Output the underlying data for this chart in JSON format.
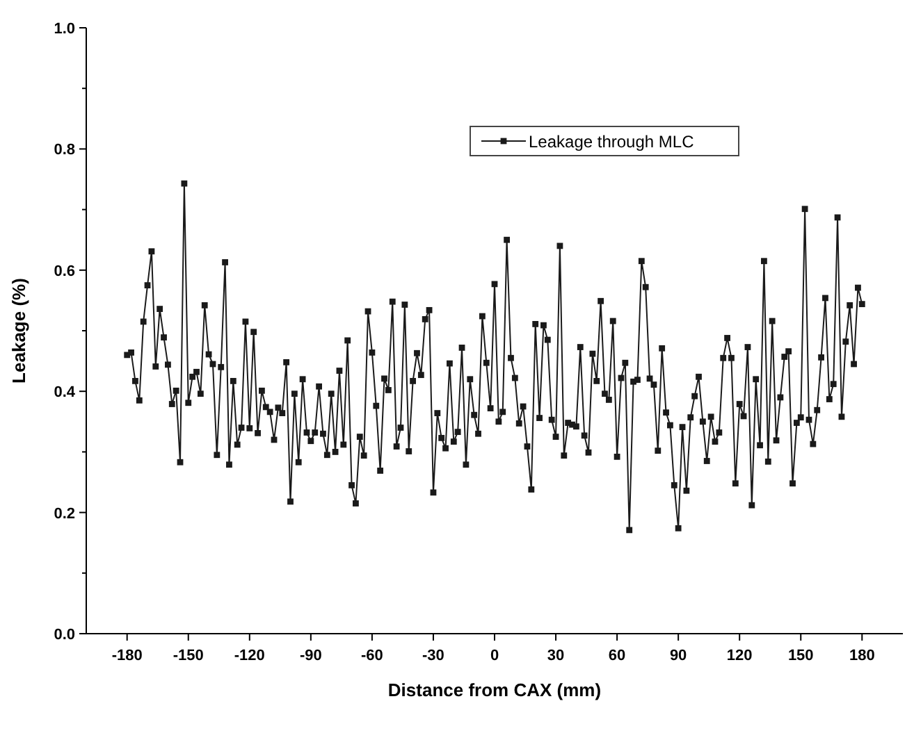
{
  "chart_data": {
    "type": "line",
    "xlabel": "Distance from CAX (mm)",
    "ylabel": "Leakage (%)",
    "xlim": [
      -200,
      200
    ],
    "xticks": [
      -180,
      -150,
      -120,
      -90,
      -60,
      -30,
      0,
      30,
      60,
      90,
      120,
      150,
      180
    ],
    "ylim": [
      0,
      1
    ],
    "yticks": [
      {
        "value": 0,
        "label": "0.0"
      },
      {
        "value": 0.1,
        "label": null
      },
      {
        "value": 0.2,
        "label": "0.2"
      },
      {
        "value": 0.3,
        "label": null
      },
      {
        "value": 0.4,
        "label": "0.4"
      },
      {
        "value": 0.5,
        "label": null
      },
      {
        "value": 0.6,
        "label": "0.6"
      },
      {
        "value": 0.7,
        "label": null
      },
      {
        "value": 0.8,
        "label": "0.8"
      },
      {
        "value": 0.9,
        "label": null
      },
      {
        "value": 1,
        "label": "1.0"
      }
    ],
    "grid": false,
    "legend": "top right",
    "marker": "square",
    "line_style": "solid",
    "x": [
      -180,
      -178,
      -176,
      -174,
      -172,
      -170,
      -168,
      -166,
      -164,
      -162,
      -160,
      -158,
      -156,
      -154,
      -152,
      -150,
      -148,
      -146,
      -144,
      -142,
      -140,
      -138,
      -136,
      -134,
      -132,
      -130,
      -128,
      -126,
      -124,
      -122,
      -120,
      -118,
      -116,
      -114,
      -112,
      -110,
      -108,
      -106,
      -104,
      -102,
      -100,
      -98,
      -96,
      -94,
      -92,
      -90,
      -88,
      -86,
      -84,
      -82,
      -80,
      -78,
      -76,
      -74,
      -72,
      -70,
      -68,
      -66,
      -64,
      -62,
      -60,
      -58,
      -56,
      -54,
      -52,
      -50,
      -48,
      -46,
      -44,
      -42,
      -40,
      -38,
      -36,
      -34,
      -32,
      -30,
      -28,
      -26,
      -24,
      -22,
      -20,
      -18,
      -16,
      -14,
      -12,
      -10,
      -8,
      -6,
      -4,
      -2,
      0,
      2,
      4,
      6,
      8,
      10,
      12,
      14,
      16,
      18,
      20,
      22,
      24,
      26,
      28,
      30,
      32,
      34,
      36,
      38,
      40,
      42,
      44,
      46,
      48,
      50,
      52,
      54,
      56,
      58,
      60,
      62,
      64,
      66,
      68,
      70,
      72,
      74,
      76,
      78,
      80,
      82,
      84,
      86,
      88,
      90,
      92,
      94,
      96,
      98,
      100,
      102,
      104,
      106,
      108,
      110,
      112,
      114,
      116,
      118,
      120,
      122,
      124,
      126,
      128,
      130,
      132,
      134,
      136,
      138,
      140,
      142,
      144,
      146,
      148,
      150,
      152,
      154,
      156,
      158,
      160,
      162,
      164,
      166,
      168,
      170,
      172,
      174,
      176,
      178,
      180
    ],
    "series": [
      {
        "name": "Leakage through MLC",
        "color": "#1a1a1a",
        "values": [
          0.46,
          0.464,
          0.417,
          0.385,
          0.515,
          0.575,
          0.631,
          0.441,
          0.536,
          0.489,
          0.444,
          0.379,
          0.401,
          0.283,
          0.743,
          0.381,
          0.424,
          0.432,
          0.396,
          0.542,
          0.461,
          0.445,
          0.295,
          0.44,
          0.613,
          0.279,
          0.417,
          0.312,
          0.34,
          0.515,
          0.339,
          0.498,
          0.331,
          0.401,
          0.374,
          0.366,
          0.32,
          0.373,
          0.364,
          0.448,
          0.218,
          0.396,
          0.283,
          0.42,
          0.332,
          0.318,
          0.332,
          0.408,
          0.33,
          0.295,
          0.396,
          0.3,
          0.434,
          0.312,
          0.484,
          0.245,
          0.215,
          0.325,
          0.294,
          0.532,
          0.464,
          0.376,
          0.269,
          0.421,
          0.402,
          0.548,
          0.309,
          0.34,
          0.543,
          0.301,
          0.417,
          0.463,
          0.427,
          0.519,
          0.534,
          0.233,
          0.364,
          0.323,
          0.306,
          0.446,
          0.317,
          0.333,
          0.472,
          0.279,
          0.42,
          0.361,
          0.33,
          0.524,
          0.447,
          0.372,
          0.577,
          0.35,
          0.366,
          0.65,
          0.455,
          0.422,
          0.347,
          0.375,
          0.309,
          0.238,
          0.511,
          0.356,
          0.509,
          0.485,
          0.353,
          0.325,
          0.64,
          0.294,
          0.348,
          0.345,
          0.342,
          0.473,
          0.327,
          0.299,
          0.462,
          0.417,
          0.549,
          0.396,
          0.386,
          0.516,
          0.292,
          0.422,
          0.447,
          0.171,
          0.416,
          0.419,
          0.615,
          0.572,
          0.421,
          0.411,
          0.302,
          0.471,
          0.365,
          0.344,
          0.245,
          0.174,
          0.341,
          0.236,
          0.357,
          0.392,
          0.424,
          0.35,
          0.285,
          0.358,
          0.317,
          0.332,
          0.455,
          0.488,
          0.455,
          0.248,
          0.379,
          0.359,
          0.473,
          0.212,
          0.42,
          0.311,
          0.615,
          0.284,
          0.516,
          0.319,
          0.39,
          0.457,
          0.466,
          0.248,
          0.348,
          0.357,
          0.701,
          0.353,
          0.313,
          0.369,
          0.456,
          0.554,
          0.387,
          0.412,
          0.687,
          0.358,
          0.482,
          0.542,
          0.445,
          0.571,
          0.544
        ]
      }
    ]
  }
}
